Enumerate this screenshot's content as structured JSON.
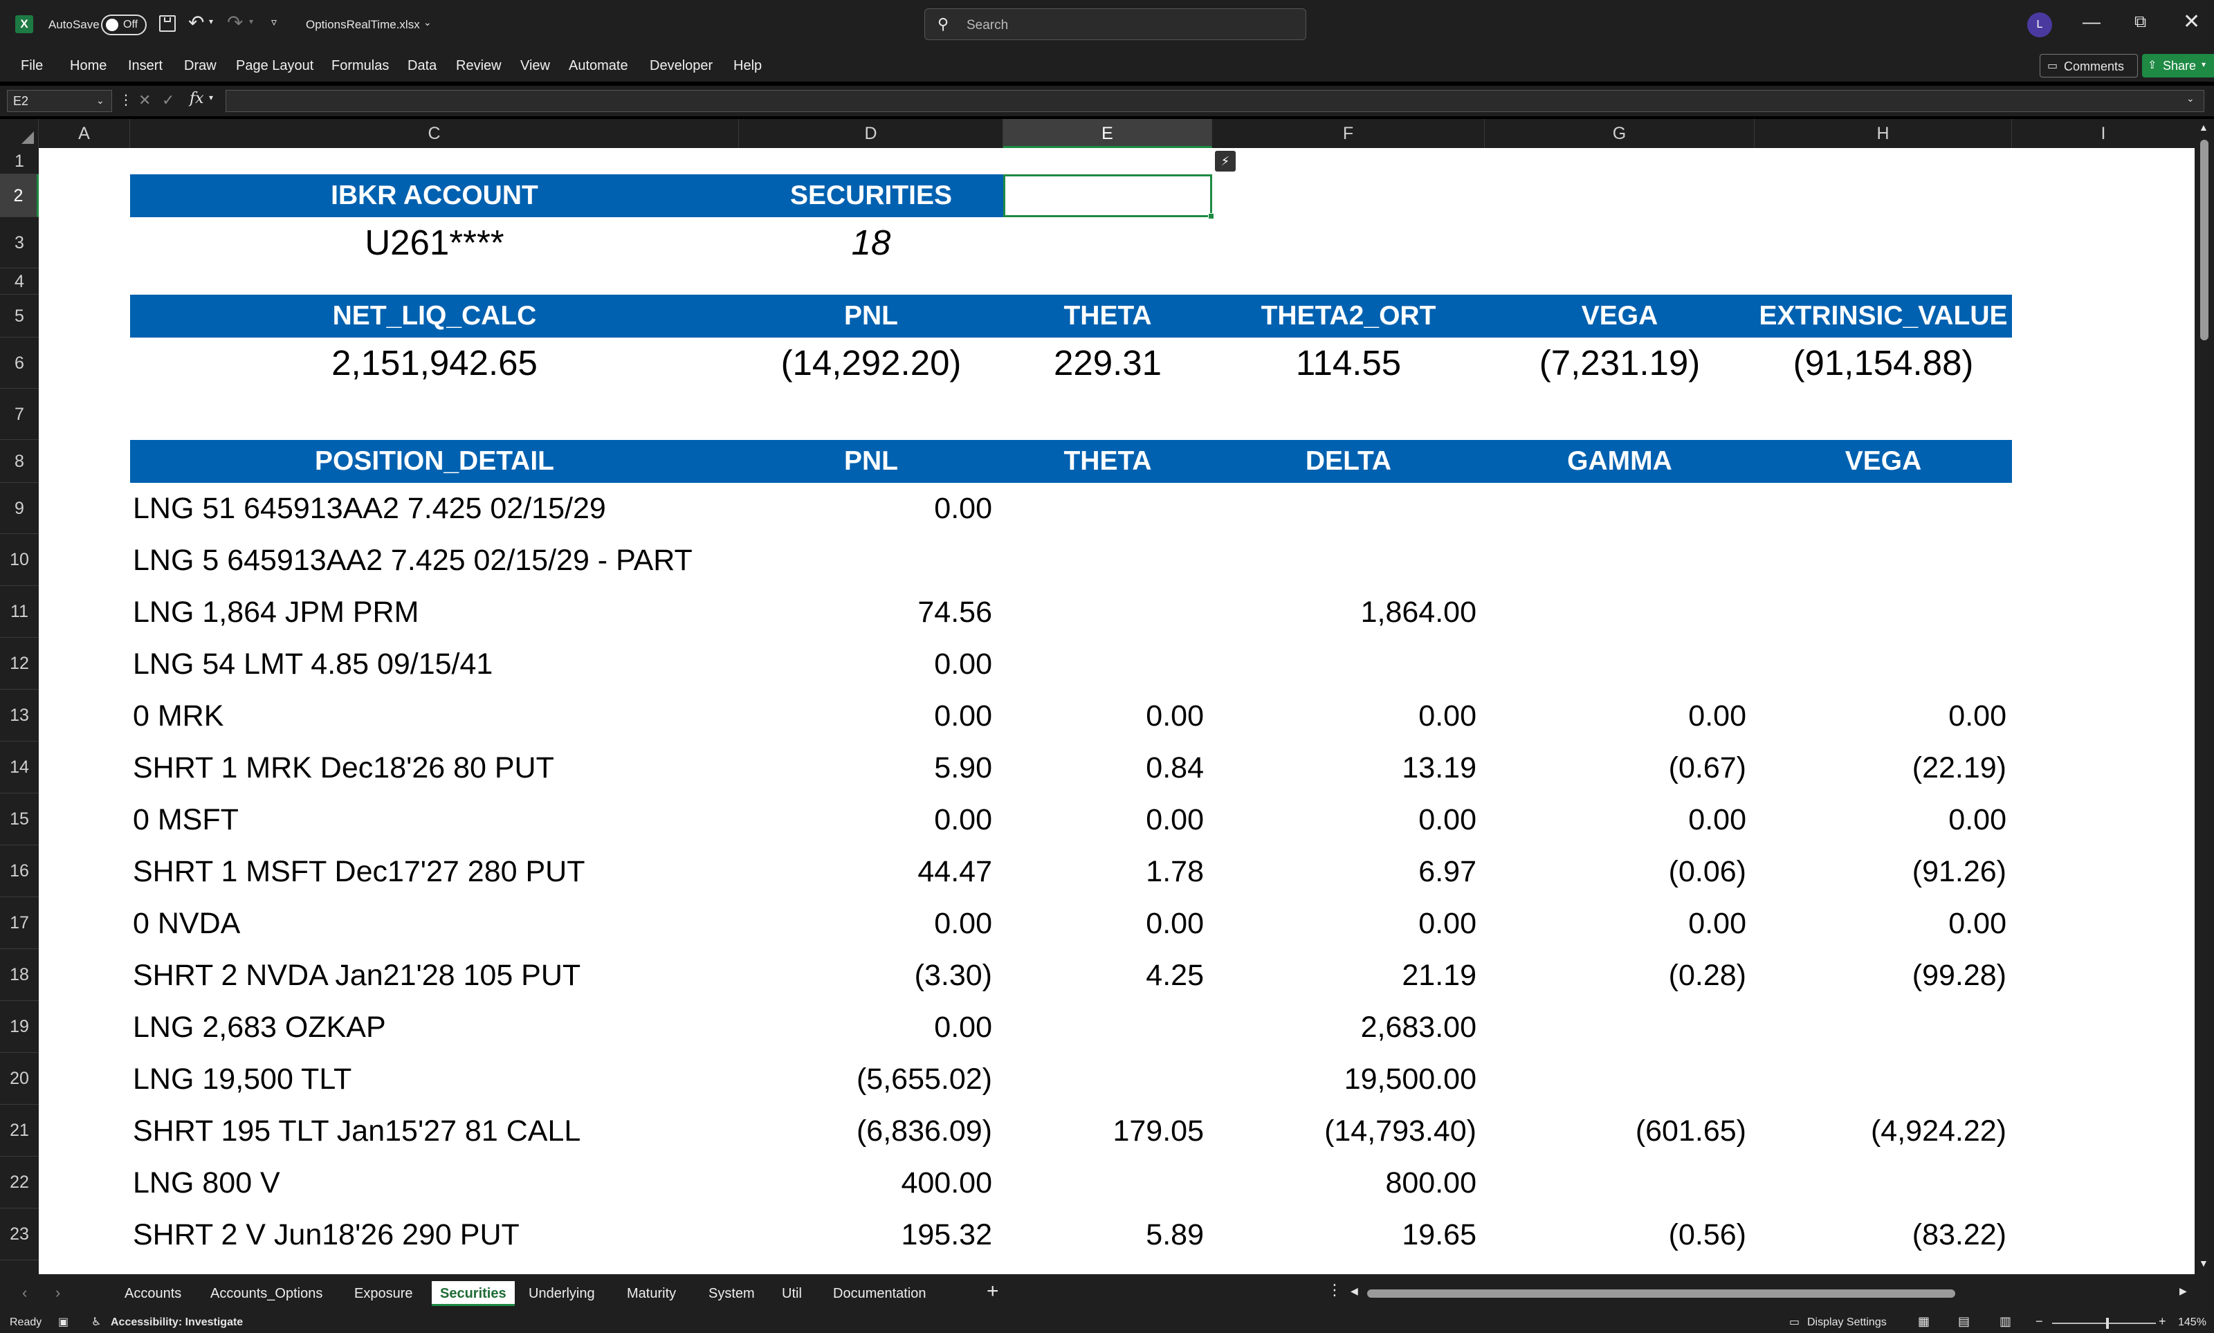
{
  "titlebar": {
    "autosave_label": "AutoSave",
    "autosave_state": "Off",
    "filename": "OptionsRealTime.xlsx",
    "search_placeholder": "Search",
    "avatar_initial": "L"
  },
  "menu": [
    "File",
    "Home",
    "Insert",
    "Draw",
    "Page Layout",
    "Formulas",
    "Data",
    "Review",
    "View",
    "Automate",
    "Developer",
    "Help"
  ],
  "menu_right": {
    "comments": "Comments",
    "share": "Share"
  },
  "formula": {
    "name_box": "E2",
    "fx": "fx",
    "content": ""
  },
  "columns": [
    "A",
    "C",
    "D",
    "E",
    "F",
    "G",
    "H",
    "I"
  ],
  "rows": [
    "1",
    "2",
    "3",
    "4",
    "5",
    "6",
    "7",
    "8",
    "9",
    "10",
    "11",
    "12",
    "13",
    "14",
    "15",
    "16",
    "17",
    "18",
    "19",
    "20",
    "21",
    "22",
    "23"
  ],
  "account_section": {
    "headers": [
      "IBKR ACCOUNT",
      "SECURITIES"
    ],
    "values": [
      "U261****",
      "18"
    ]
  },
  "summary_section": {
    "headers": [
      "NET_LIQ_CALC",
      "PNL",
      "THETA",
      "THETA2_ORT",
      "VEGA",
      "EXTRINSIC_VALUE"
    ],
    "values": [
      "2,151,942.65",
      "(14,292.20)",
      "229.31",
      "114.55",
      "(7,231.19)",
      "(91,154.88)"
    ]
  },
  "positions": {
    "headers": [
      "POSITION_DETAIL",
      "PNL",
      "THETA",
      "DELTA",
      "GAMMA",
      "VEGA"
    ],
    "rows": [
      [
        "LNG 51 645913AA2 7.425 02/15/29",
        "0.00",
        "",
        "",
        "",
        ""
      ],
      [
        "LNG 5 645913AA2 7.425 02/15/29 - PART",
        "",
        "",
        "",
        "",
        ""
      ],
      [
        "LNG 1,864 JPM PRM",
        "74.56",
        "",
        "1,864.00",
        "",
        ""
      ],
      [
        "LNG 54 LMT 4.85 09/15/41",
        "0.00",
        "",
        "",
        "",
        ""
      ],
      [
        "0 MRK",
        "0.00",
        "0.00",
        "0.00",
        "0.00",
        "0.00"
      ],
      [
        "SHRT 1 MRK Dec18'26 80 PUT",
        "5.90",
        "0.84",
        "13.19",
        "(0.67)",
        "(22.19)"
      ],
      [
        "0 MSFT",
        "0.00",
        "0.00",
        "0.00",
        "0.00",
        "0.00"
      ],
      [
        "SHRT 1 MSFT Dec17'27 280 PUT",
        "44.47",
        "1.78",
        "6.97",
        "(0.06)",
        "(91.26)"
      ],
      [
        "0 NVDA",
        "0.00",
        "0.00",
        "0.00",
        "0.00",
        "0.00"
      ],
      [
        "SHRT 2 NVDA Jan21'28 105 PUT",
        "(3.30)",
        "4.25",
        "21.19",
        "(0.28)",
        "(99.28)"
      ],
      [
        "LNG 2,683 OZKAP",
        "0.00",
        "",
        "2,683.00",
        "",
        ""
      ],
      [
        "LNG 19,500 TLT",
        "(5,655.02)",
        "",
        "19,500.00",
        "",
        ""
      ],
      [
        "SHRT 195 TLT Jan15'27 81 CALL",
        "(6,836.09)",
        "179.05",
        "(14,793.40)",
        "(601.65)",
        "(4,924.22)"
      ],
      [
        "LNG 800 V",
        "400.00",
        "",
        "800.00",
        "",
        ""
      ],
      [
        "SHRT 2 V Jun18'26 290 PUT",
        "195.32",
        "5.89",
        "19.65",
        "(0.56)",
        "(83.22)"
      ]
    ]
  },
  "tabs": [
    "Accounts",
    "Accounts_Options",
    "Exposure",
    "Securities",
    "Underlying",
    "Maturity",
    "System",
    "Util",
    "Documentation"
  ],
  "active_tab": "Securities",
  "status": {
    "ready": "Ready",
    "accessibility": "Accessibility: Investigate",
    "display_settings": "Display Settings",
    "zoom": "145%"
  },
  "colors": {
    "header_band": "#0061b0",
    "chrome": "#1f1f1f",
    "share_green": "#1e8a44"
  }
}
